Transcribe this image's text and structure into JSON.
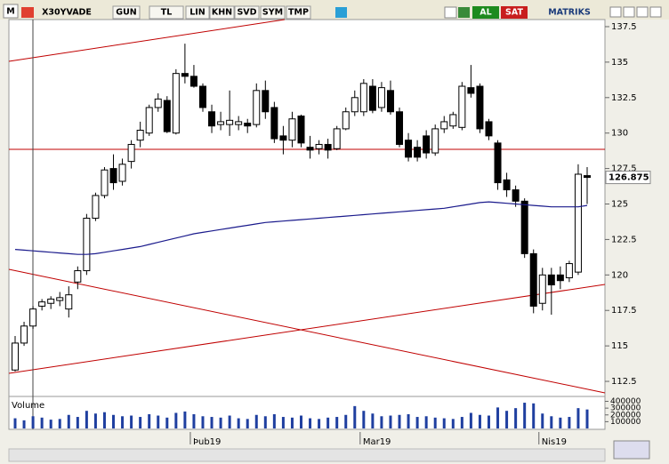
{
  "toolbar": {
    "logo": "M",
    "symbol": "X30YVADE",
    "buttons": [
      "GUN",
      "TL",
      "LIN",
      "KHN",
      "SVD",
      "SYM",
      "TMP"
    ],
    "buy": "AL",
    "sell": "SAT",
    "brand": "MATRIKS"
  },
  "chart_data": {
    "type": "candlestick",
    "categories": [
      null,
      null,
      null,
      null,
      null,
      null,
      null,
      null,
      null,
      null,
      null,
      null,
      null,
      null,
      null,
      null,
      null,
      null,
      null,
      null,
      "Þub19",
      null,
      null,
      null,
      null,
      null,
      null,
      null,
      null,
      null,
      null,
      null,
      null,
      null,
      null,
      null,
      null,
      null,
      null,
      "Mar19",
      null,
      null,
      null,
      null,
      null,
      null,
      null,
      null,
      null,
      null,
      null,
      null,
      null,
      null,
      null,
      null,
      null,
      null,
      null,
      "Nis19",
      null,
      null,
      null,
      null,
      null
    ],
    "open": [
      113.3,
      115.2,
      116.4,
      117.8,
      118.0,
      118.2,
      117.6,
      119.5,
      120.3,
      124.0,
      125.6,
      127.5,
      126.6,
      128.0,
      129.5,
      130.0,
      131.8,
      132.3,
      130.0,
      134.2,
      134.0,
      133.3,
      131.5,
      130.6,
      130.6,
      130.6,
      130.7,
      130.6,
      133.0,
      131.8,
      129.8,
      129.5,
      131.2,
      129.0,
      128.9,
      129.2,
      128.9,
      130.3,
      131.5,
      131.5,
      133.3,
      131.8,
      133.0,
      131.5,
      129.5,
      129.0,
      129.8,
      128.6,
      130.3,
      130.5,
      130.4,
      133.2,
      133.3,
      130.8,
      129.3,
      126.7,
      126.0,
      125.2,
      121.5,
      118.0,
      120.0,
      120.0,
      119.8,
      120.2,
      127.0
    ],
    "high": [
      115.7,
      116.7,
      117.8,
      118.3,
      118.5,
      118.8,
      119.2,
      120.6,
      124.3,
      125.8,
      127.6,
      128.5,
      128.2,
      129.5,
      130.8,
      132.0,
      132.8,
      132.6,
      134.5,
      136.3,
      134.8,
      133.5,
      132.0,
      131.5,
      133.0,
      131.2,
      131.0,
      133.5,
      133.7,
      132.2,
      130.5,
      131.5,
      131.3,
      129.8,
      129.5,
      129.6,
      130.5,
      131.8,
      133.0,
      133.8,
      133.8,
      133.6,
      133.7,
      131.8,
      130.0,
      129.5,
      130.2,
      130.6,
      131.2,
      131.5,
      133.6,
      134.8,
      133.5,
      131.0,
      129.5,
      127.2,
      126.3,
      125.4,
      121.8,
      120.5,
      120.5,
      120.6,
      121.0,
      127.8,
      127.6
    ],
    "low": [
      113.2,
      115.0,
      116.2,
      117.5,
      117.6,
      117.8,
      117.0,
      119.0,
      120.0,
      123.8,
      125.4,
      126.0,
      126.3,
      127.5,
      129.0,
      129.8,
      131.5,
      130.0,
      129.9,
      133.5,
      133.2,
      131.5,
      130.0,
      130.2,
      129.8,
      130.2,
      130.0,
      130.4,
      131.0,
      129.3,
      128.5,
      129.0,
      129.0,
      128.2,
      128.5,
      128.2,
      128.8,
      130.2,
      131.2,
      131.2,
      131.4,
      131.5,
      131.3,
      129.0,
      128.0,
      128.0,
      128.2,
      128.4,
      130.0,
      130.3,
      130.2,
      132.5,
      130.0,
      129.5,
      126.0,
      125.5,
      124.8,
      121.2,
      117.3,
      117.5,
      117.2,
      119.0,
      119.5,
      120.0,
      125.0
    ],
    "close": [
      115.2,
      116.4,
      117.6,
      118.1,
      118.3,
      118.4,
      118.6,
      120.3,
      124.0,
      125.6,
      127.4,
      126.5,
      127.8,
      129.2,
      130.2,
      131.8,
      132.4,
      130.1,
      134.2,
      134.0,
      133.3,
      131.8,
      130.5,
      130.8,
      130.9,
      130.8,
      130.5,
      133.0,
      131.5,
      129.6,
      129.5,
      131.0,
      129.3,
      128.8,
      129.2,
      128.8,
      130.3,
      131.5,
      132.5,
      133.5,
      131.6,
      133.2,
      131.5,
      129.2,
      128.3,
      128.3,
      128.6,
      130.3,
      130.8,
      131.3,
      133.3,
      132.8,
      130.3,
      129.8,
      126.5,
      126.0,
      125.2,
      121.5,
      117.8,
      120.0,
      119.3,
      119.6,
      120.8,
      127.1,
      126.875
    ],
    "moving_average": {
      "color": "#1a1a8c",
      "values": [
        121.8,
        121.75,
        121.7,
        121.65,
        121.6,
        121.55,
        121.5,
        121.45,
        121.45,
        121.5,
        121.6,
        121.7,
        121.8,
        121.9,
        122.0,
        122.15,
        122.3,
        122.45,
        122.6,
        122.75,
        122.9,
        123.0,
        123.1,
        123.2,
        123.3,
        123.4,
        123.5,
        123.6,
        123.7,
        123.75,
        123.8,
        123.85,
        123.9,
        123.95,
        124.0,
        124.05,
        124.1,
        124.15,
        124.2,
        124.25,
        124.3,
        124.35,
        124.4,
        124.45,
        124.5,
        124.55,
        124.6,
        124.65,
        124.7,
        124.8,
        124.9,
        125.0,
        125.1,
        125.15,
        125.1,
        125.05,
        125.0,
        124.95,
        124.9,
        124.85,
        124.8,
        124.8,
        124.8,
        124.8,
        124.9
      ]
    },
    "last_price": 126.875,
    "ylim": [
      111.5,
      138
    ],
    "yticks": [
      112.5,
      115,
      117.5,
      120,
      122.5,
      125,
      127.5,
      130,
      132.5,
      135,
      137.5
    ],
    "volume": {
      "label": "Volume",
      "color": "#1f3fa0",
      "ylim": [
        0,
        420000
      ],
      "yticks": [
        100000,
        200000,
        300000,
        400000
      ],
      "values": [
        150000,
        120000,
        180000,
        160000,
        130000,
        140000,
        200000,
        170000,
        260000,
        220000,
        240000,
        200000,
        180000,
        190000,
        170000,
        210000,
        190000,
        160000,
        230000,
        250000,
        210000,
        180000,
        170000,
        160000,
        190000,
        150000,
        140000,
        200000,
        180000,
        210000,
        170000,
        160000,
        190000,
        150000,
        140000,
        160000,
        170000,
        200000,
        330000,
        260000,
        220000,
        180000,
        190000,
        200000,
        210000,
        170000,
        180000,
        160000,
        150000,
        140000,
        170000,
        230000,
        200000,
        190000,
        310000,
        260000,
        300000,
        380000,
        370000,
        220000,
        180000,
        160000,
        170000,
        300000,
        280000
      ]
    }
  }
}
